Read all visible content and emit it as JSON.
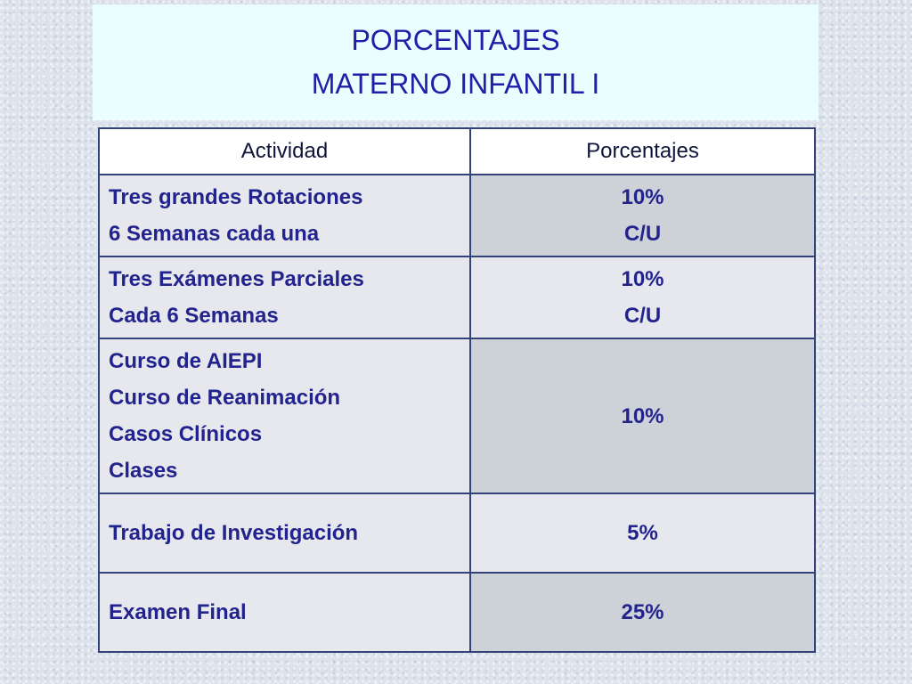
{
  "title": {
    "line1": "PORCENTAJES",
    "line2": "MATERNO INFANTIL I"
  },
  "table": {
    "headers": [
      "Actividad",
      "Porcentajes"
    ],
    "rows": [
      {
        "activity": [
          "Tres grandes Rotaciones",
          "6 Semanas cada una"
        ],
        "percentage": [
          "10%",
          "C/U"
        ]
      },
      {
        "activity": [
          "Tres Exámenes Parciales",
          "Cada 6 Semanas"
        ],
        "percentage": [
          "10%",
          "C/U"
        ]
      },
      {
        "activity": [
          "Curso de AIEPI",
          "Curso de Reanimación",
          "Casos Clínicos",
          "Clases"
        ],
        "percentage": [
          "10%"
        ]
      },
      {
        "activity": [
          "Trabajo de Investigación"
        ],
        "percentage": [
          "5%"
        ]
      },
      {
        "activity": [
          "Examen Final"
        ],
        "percentage": [
          "25%"
        ]
      }
    ]
  },
  "colors": {
    "title_text": "#1f1fa8",
    "cell_text": "#23238e",
    "border": "#33437a",
    "title_background": "#eafdff"
  }
}
